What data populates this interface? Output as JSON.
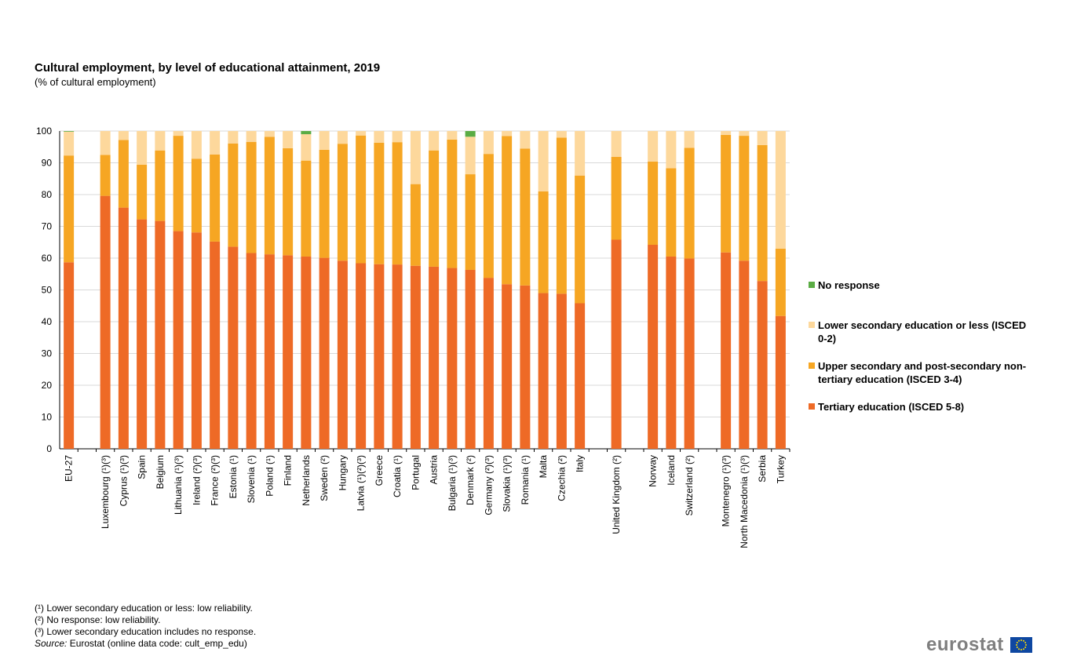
{
  "colors": {
    "tertiary": "#ee6a26",
    "upper": "#f6a623",
    "lower": "#fdd89c",
    "noresp": "#5aac44",
    "grid": "#d9d9d9",
    "axis": "#000000"
  },
  "chart_data": {
    "type": "bar",
    "stacked": true,
    "title": "Cultural employment, by level of educational attainment, 2019",
    "subtitle": "(% of cultural employment)",
    "ylim": [
      0,
      100
    ],
    "yticks": [
      "0",
      "10",
      "20",
      "30",
      "40",
      "50",
      "60",
      "70",
      "80",
      "90",
      "100"
    ],
    "categories": [
      "EU-27",
      "",
      "Luxembourg (¹)(³)",
      "Cyprus (¹)(³)",
      "Spain",
      "Belgium",
      "Lithuania (¹)(³)",
      "Ireland (²)(³)",
      "France (²)(³)",
      "Estonia (¹)",
      "Slovenia (¹)",
      "Poland (¹)",
      "Finland",
      "Netherlands",
      "Sweden (²)",
      "Hungary",
      "Latvia (¹)(²)(³)",
      "Greece",
      "Croatia (¹)",
      "Portugal",
      "Austria",
      "Bulgaria (¹)(³)",
      "Denmark (²)",
      "Germany (²)(³)",
      "Slovakia (¹)(³)",
      "Romania (¹)",
      "Malta",
      "Czechia (²)",
      "Italy",
      "",
      "United Kingdom (²)",
      "",
      "Norway",
      "Iceland",
      "Switzerland (²)",
      "",
      "Montenegro (¹)(³)",
      "North Macedonia (¹)(³)",
      "Serbia",
      "Turkey"
    ],
    "series": [
      {
        "name": "Tertiary education (ISCED 5-8)",
        "values": [
          58.7,
          null,
          79.6,
          75.9,
          72.2,
          71.7,
          68.5,
          68.1,
          65.2,
          63.6,
          61.6,
          61.2,
          60.9,
          60.5,
          60.1,
          59.2,
          58.4,
          58.1,
          58.0,
          57.6,
          57.3,
          56.9,
          56.3,
          53.8,
          51.8,
          51.4,
          49.0,
          48.8,
          45.8,
          null,
          65.8,
          null,
          64.2,
          60.5,
          59.9,
          null,
          61.8,
          59.2,
          52.8,
          41.8
        ]
      },
      {
        "name": "Upper secondary and post-secondary non-tertiary education (ISCED 3-4)",
        "values": [
          33.6,
          null,
          12.9,
          21.3,
          17.2,
          22.2,
          30.0,
          23.2,
          27.4,
          32.5,
          35.0,
          37.0,
          33.7,
          30.2,
          34.0,
          36.8,
          40.2,
          38.2,
          38.5,
          25.7,
          36.6,
          40.4,
          30.1,
          39.0,
          46.6,
          43.1,
          32.0,
          49.1,
          40.2,
          null,
          26.1,
          null,
          26.2,
          27.8,
          34.8,
          null,
          37.0,
          39.3,
          42.8,
          21.2
        ]
      },
      {
        "name": "Lower secondary education or less (ISCED 0-2)",
        "values": [
          7.5,
          null,
          7.5,
          2.8,
          10.6,
          6.1,
          1.5,
          8.7,
          7.4,
          3.9,
          3.4,
          1.8,
          5.4,
          8.3,
          5.9,
          4.0,
          1.4,
          3.7,
          3.5,
          16.7,
          6.1,
          2.7,
          11.8,
          7.2,
          1.6,
          5.5,
          19.0,
          2.1,
          14.0,
          null,
          8.1,
          null,
          9.6,
          11.7,
          5.3,
          null,
          1.2,
          1.5,
          4.4,
          37.0
        ]
      },
      {
        "name": "No response",
        "values": [
          0.2,
          null,
          0,
          0,
          0,
          0,
          0,
          0,
          0,
          0,
          0,
          0,
          0,
          1.0,
          0,
          0,
          0,
          0,
          0,
          0,
          0,
          0,
          1.8,
          0,
          0,
          0,
          0,
          0,
          0,
          null,
          0,
          null,
          0,
          0,
          0,
          null,
          0,
          0,
          0,
          0
        ]
      }
    ]
  },
  "legend": [
    {
      "key": "noresp",
      "label": "No response"
    },
    {
      "key": "lower",
      "label": "Lower secondary education or less (ISCED 0-2)"
    },
    {
      "key": "upper",
      "label": "Upper secondary and post-secondary non-tertiary education (ISCED 3-4)"
    },
    {
      "key": "tertiary",
      "label": "Tertiary education (ISCED 5-8)"
    }
  ],
  "notes": {
    "note1": "(¹) Lower secondary education or less: low reliability.",
    "note2": "(²) No response: low reliability.",
    "note3": "(³) Lower secondary education includes no response.",
    "source_label": "Source:",
    "source_text": " Eurostat (online data code: cult_emp_edu)"
  },
  "logo": {
    "text": "eurostat"
  }
}
